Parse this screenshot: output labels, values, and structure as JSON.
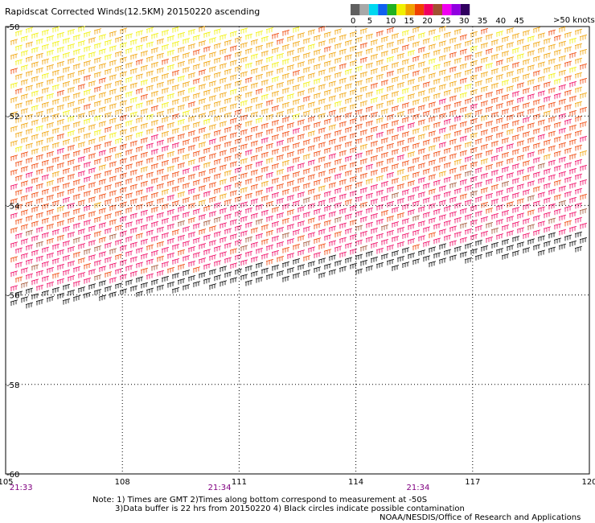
{
  "chart_data": {
    "type": "scatter",
    "title": "Rapidscat Corrected Winds(12.5KM) 20150220 ascending",
    "x_ticks": [
      "105",
      "108",
      "111",
      "114",
      "117",
      "120"
    ],
    "y_ticks": [
      "-50",
      "-52",
      "-54",
      "-56",
      "-58",
      "-60"
    ],
    "xlim": [
      105,
      120
    ],
    "ylim": [
      -60,
      -50
    ],
    "grid": true,
    "time_labels": [
      {
        "lon": 105.1,
        "text": "21:33"
      },
      {
        "lon": 110.2,
        "text": "21:34"
      },
      {
        "lon": 115.3,
        "text": "21:34"
      }
    ],
    "legend": {
      "placement": "top-right",
      "unit_label": ">50 knots",
      "ticks": [
        "0",
        "5",
        "10",
        "15",
        "20",
        "25",
        "30",
        "35",
        "40",
        "45"
      ],
      "colors": [
        "#606060",
        "#a8a8a8",
        "#00d8f0",
        "#1060f0",
        "#20b020",
        "#f0f000",
        "#f0a000",
        "#f04000",
        "#f00060",
        "#a05030",
        "#f000f0",
        "#9000e0",
        "#300060"
      ]
    },
    "swath_note": "wind barbs over swath; color denotes speed bin",
    "notes": [
      "Note: 1) Times are GMT 2)Times along bottom correspond to measurement at -50S",
      "3)Data buffer is 22 hrs from 20150220 4) Black circles indicate possible contamination"
    ],
    "credit": "NOAA/NESDIS/Office of Research and Applications"
  }
}
